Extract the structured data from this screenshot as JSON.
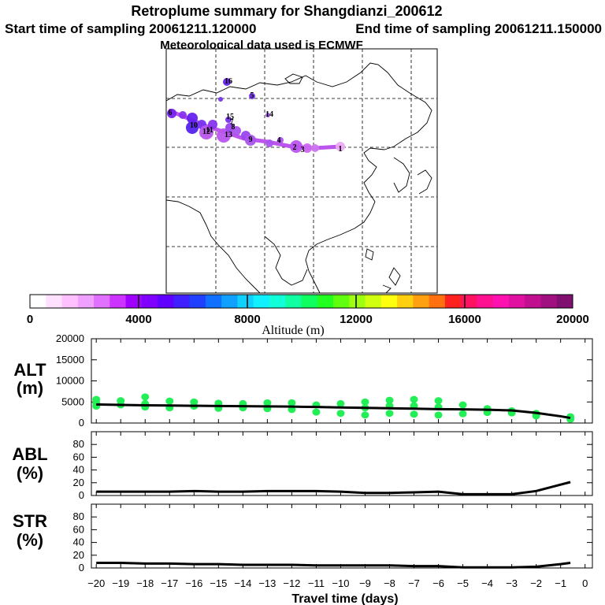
{
  "header": {
    "title": "Retroplume summary for Shangdianzi_200612",
    "start": "Start time of sampling 20061211.120000",
    "end": "End time of sampling 20061211.150000",
    "met": "Meteorological data used is ECMWF"
  },
  "colorbar": {
    "label": "Altitude (m)",
    "ticks": [
      "0",
      "4000",
      "8000",
      "12000",
      "16000",
      "20000"
    ],
    "colors": [
      "#ffffff",
      "#ffe0ff",
      "#ffc0ff",
      "#f0a0ff",
      "#e070ff",
      "#cc33ff",
      "#a000ff",
      "#8000ff",
      "#6000ff",
      "#4020ff",
      "#2040ff",
      "#1070ff",
      "#10a0ff",
      "#10d0ff",
      "#10f0ff",
      "#10ffd8",
      "#10ffa0",
      "#10ff60",
      "#20ff20",
      "#60ff10",
      "#a0ff10",
      "#d0ff10",
      "#ffff10",
      "#ffd010",
      "#ffa010",
      "#ff7010",
      "#ff2020",
      "#ff1060",
      "#ff1090",
      "#ff10b0",
      "#e010a0",
      "#c01090",
      "#a01080",
      "#801070"
    ]
  },
  "map_labels": [
    "1",
    "2",
    "3",
    "4",
    "5",
    "6",
    "7",
    "8",
    "9",
    "10",
    "11",
    "12",
    "13",
    "14",
    "15",
    "16"
  ],
  "colors": {
    "line": "#000000",
    "dots": "#22ee55",
    "plume": "#bb55ee"
  },
  "chart_data": [
    {
      "type": "line",
      "title": "ALT",
      "ylabel": "ALT (m)",
      "ylim": [
        0,
        20000
      ],
      "yticks": [
        0,
        5000,
        10000,
        15000,
        20000
      ],
      "x": [
        -20,
        -19,
        -18,
        -17,
        -16,
        -15,
        -14,
        -13,
        -12,
        -11,
        -10,
        -9,
        -8,
        -7,
        -6,
        -5,
        -4,
        -3,
        -2,
        -1,
        -0.6
      ],
      "values": [
        4400,
        4300,
        4200,
        4150,
        4100,
        4050,
        4000,
        3950,
        3900,
        3800,
        3700,
        3600,
        3500,
        3400,
        3300,
        3250,
        3150,
        3000,
        2400,
        1600,
        1200
      ],
      "scatter": [
        {
          "x": -20,
          "y": [
            5600,
            4800,
            4000
          ]
        },
        {
          "x": -19,
          "y": [
            5300,
            4300
          ]
        },
        {
          "x": -18,
          "y": [
            6200,
            4600,
            3800
          ]
        },
        {
          "x": -17,
          "y": [
            5200,
            3600
          ]
        },
        {
          "x": -16,
          "y": [
            5000,
            4000
          ]
        },
        {
          "x": -15,
          "y": [
            4700,
            3500
          ]
        },
        {
          "x": -14,
          "y": [
            4600,
            3600
          ]
        },
        {
          "x": -13,
          "y": [
            4800,
            3400
          ]
        },
        {
          "x": -12,
          "y": [
            4800,
            3200
          ]
        },
        {
          "x": -11,
          "y": [
            4300,
            2600
          ]
        },
        {
          "x": -10,
          "y": [
            4600,
            2300
          ]
        },
        {
          "x": -9,
          "y": [
            5000,
            3600,
            1900
          ]
        },
        {
          "x": -8,
          "y": [
            5400,
            4100,
            2300
          ]
        },
        {
          "x": -7,
          "y": [
            5600,
            4100,
            2100
          ]
        },
        {
          "x": -6,
          "y": [
            5300,
            3800,
            1900
          ]
        },
        {
          "x": -5,
          "y": [
            4300,
            2200
          ]
        },
        {
          "x": -4,
          "y": [
            3400,
            2500
          ]
        },
        {
          "x": -3,
          "y": [
            2900,
            2400
          ]
        },
        {
          "x": -2,
          "y": [
            2300,
            1700
          ]
        },
        {
          "x": -0.6,
          "y": [
            1500,
            900
          ]
        }
      ]
    },
    {
      "type": "line",
      "title": "ABL",
      "ylabel": "ABL (%)",
      "ylim": [
        0,
        100
      ],
      "yticks": [
        0,
        20,
        40,
        60,
        80
      ],
      "x": [
        -20,
        -19,
        -18,
        -17,
        -16,
        -15,
        -14,
        -13,
        -12,
        -11,
        -10,
        -9,
        -8,
        -7,
        -6,
        -5,
        -4,
        -3,
        -2,
        -1,
        -0.6
      ],
      "values": [
        6,
        6,
        6,
        6,
        7,
        6,
        6,
        7,
        7,
        7,
        6,
        4,
        4,
        5,
        6,
        2,
        2,
        2,
        7,
        17,
        21
      ]
    },
    {
      "type": "line",
      "title": "STR",
      "ylabel": "STR (%)",
      "ylim": [
        0,
        100
      ],
      "yticks": [
        0,
        20,
        40,
        60,
        80
      ],
      "x": [
        -20,
        -19,
        -18,
        -17,
        -16,
        -15,
        -14,
        -13,
        -12,
        -11,
        -10,
        -9,
        -8,
        -7,
        -6,
        -5,
        -4,
        -3,
        -2,
        -1,
        -0.6
      ],
      "values": [
        8,
        8,
        7,
        7,
        6,
        6,
        5,
        5,
        5,
        4,
        4,
        4,
        4,
        3,
        3,
        1,
        1,
        1,
        2,
        6,
        8
      ],
      "xlabel": "Travel time (days)",
      "xticks": [
        -20,
        -19,
        -18,
        -17,
        -16,
        -15,
        -14,
        -13,
        -12,
        -11,
        -10,
        -9,
        -8,
        -7,
        -6,
        -5,
        -4,
        -3,
        -2,
        -1,
        0
      ]
    }
  ]
}
